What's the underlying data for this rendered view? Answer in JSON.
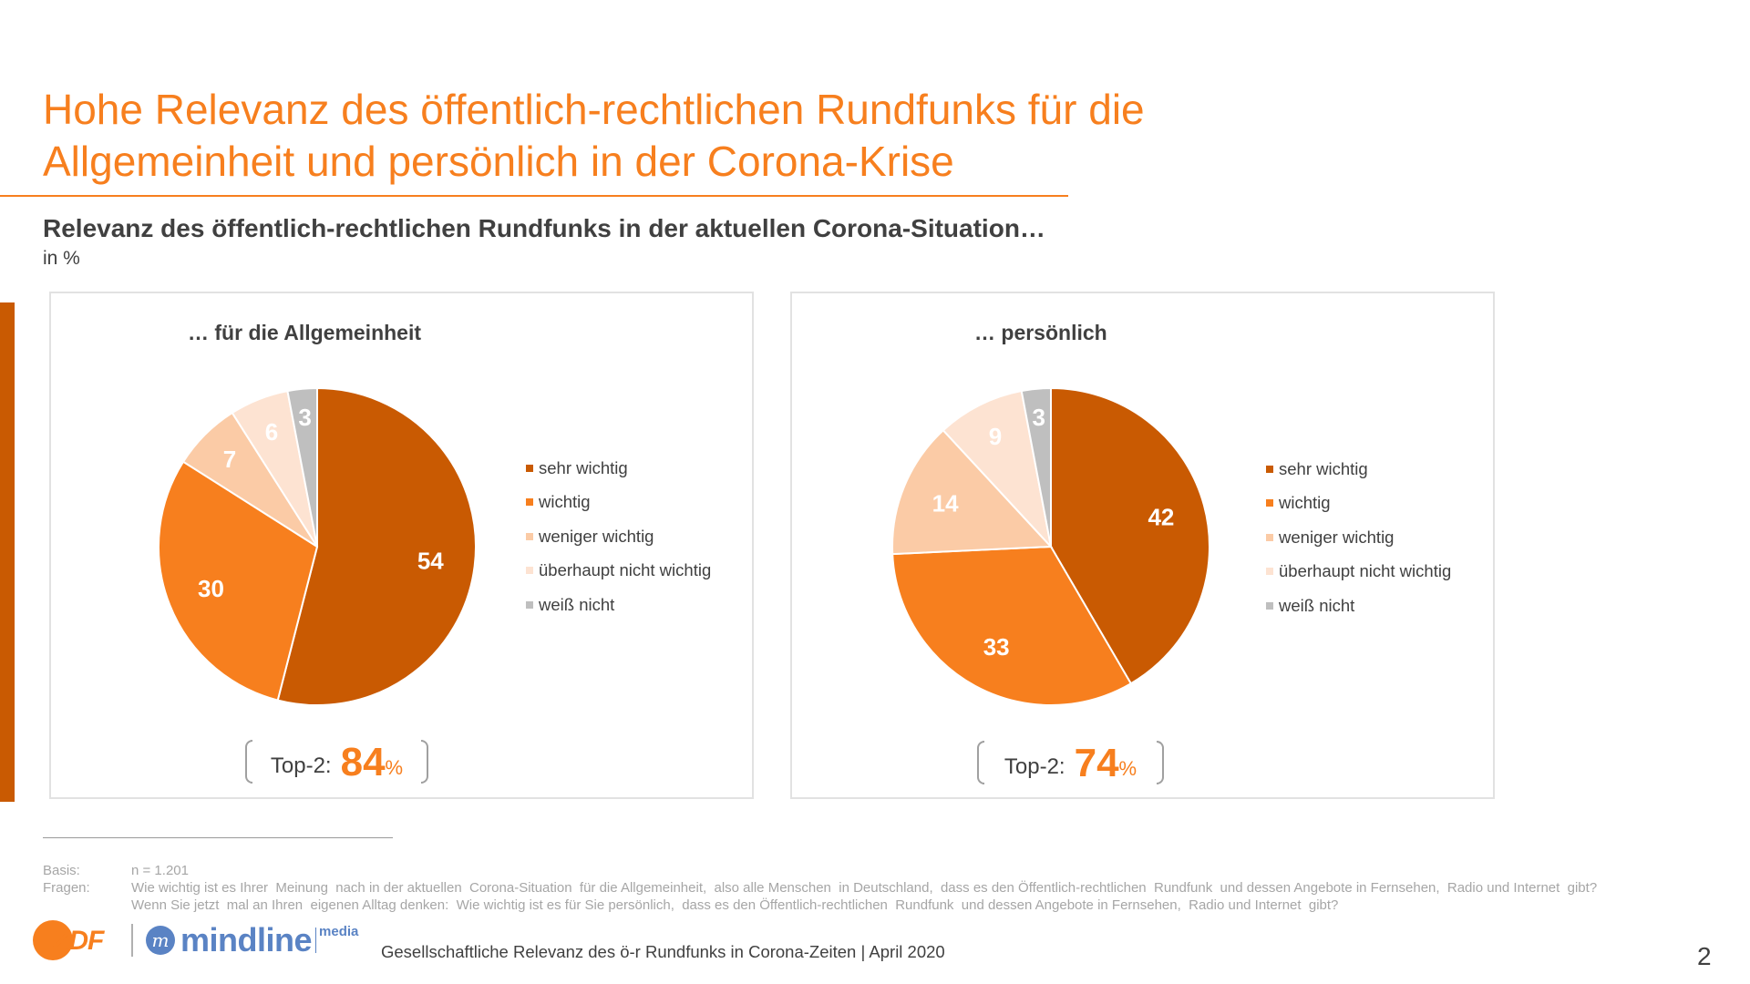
{
  "header": {
    "title_line1": "Hohe Relevanz des öffentlich-rechtlichen Rundfunks für die",
    "title_line2": "Allgemeinheit und persönlich in der Corona-Krise",
    "subtitle": "Relevanz des öffentlich-rechtlichen Rundfunks in der aktuellen Corona-Situation…",
    "unit": "in %"
  },
  "colors": {
    "accent": "#F77F1E",
    "sehr_wichtig": "#C95A02",
    "wichtig": "#F77F1E",
    "weniger_wichtig": "#FBCBA6",
    "ueberhaupt_nicht_wichtig": "#FDE3D2",
    "weiss_nicht": "#BFBFBF"
  },
  "chart_data": [
    {
      "type": "pie",
      "title": "… für die Allgemeinheit",
      "categories": [
        "sehr wichtig",
        "wichtig",
        "weniger wichtig",
        "überhaupt nicht wichtig",
        "weiß nicht"
      ],
      "values": [
        54,
        30,
        7,
        6,
        3
      ],
      "colors": [
        "#C95A02",
        "#F77F1E",
        "#FBCBA6",
        "#FDE3D2",
        "#BFBFBF"
      ],
      "start_angle_deg": 0,
      "direction": "clockwise",
      "legend_position": "right",
      "top2": {
        "label": "Top-2:",
        "value": "84",
        "unit": "%"
      }
    },
    {
      "type": "pie",
      "title": "… persönlich",
      "categories": [
        "sehr wichtig",
        "wichtig",
        "weniger wichtig",
        "überhaupt nicht wichtig",
        "weiß nicht"
      ],
      "values": [
        42,
        33,
        14,
        9,
        3
      ],
      "colors": [
        "#C95A02",
        "#F77F1E",
        "#FBCBA6",
        "#FDE3D2",
        "#BFBFBF"
      ],
      "start_angle_deg": 0,
      "direction": "clockwise",
      "legend_position": "right",
      "top2": {
        "label": "Top-2:",
        "value": "74",
        "unit": "%"
      }
    }
  ],
  "notes": {
    "basis_label": "Basis:",
    "basis_value": "n = 1.201",
    "fragen_label": "Fragen:",
    "fragen_line1": "Wie wichtig ist es Ihrer  Meinung  nach in der aktuellen  Corona-Situation  für die Allgemeinheit,  also alle Menschen  in Deutschland,  dass es den Öffentlich-rechtlichen  Rundfunk  und dessen Angebote in Fernsehen,  Radio und Internet  gibt?",
    "fragen_line2": "Wenn Sie jetzt  mal an Ihren  eigenen Alltag denken:  Wie wichtig ist es für Sie persönlich,  dass es den Öffentlich-rechtlichen  Rundfunk  und dessen Angebote in Fernsehen,  Radio und Internet  gibt?"
  },
  "footer": {
    "logo_zdf": "ZDF",
    "logo_mindline": "mindline",
    "logo_mindline_sub": "media",
    "logo_mindline_glyph": "m",
    "text": "Gesellschaftliche Relevanz des ö-r Rundfunks in Corona-Zeiten | April 2020",
    "page_number": "2"
  }
}
